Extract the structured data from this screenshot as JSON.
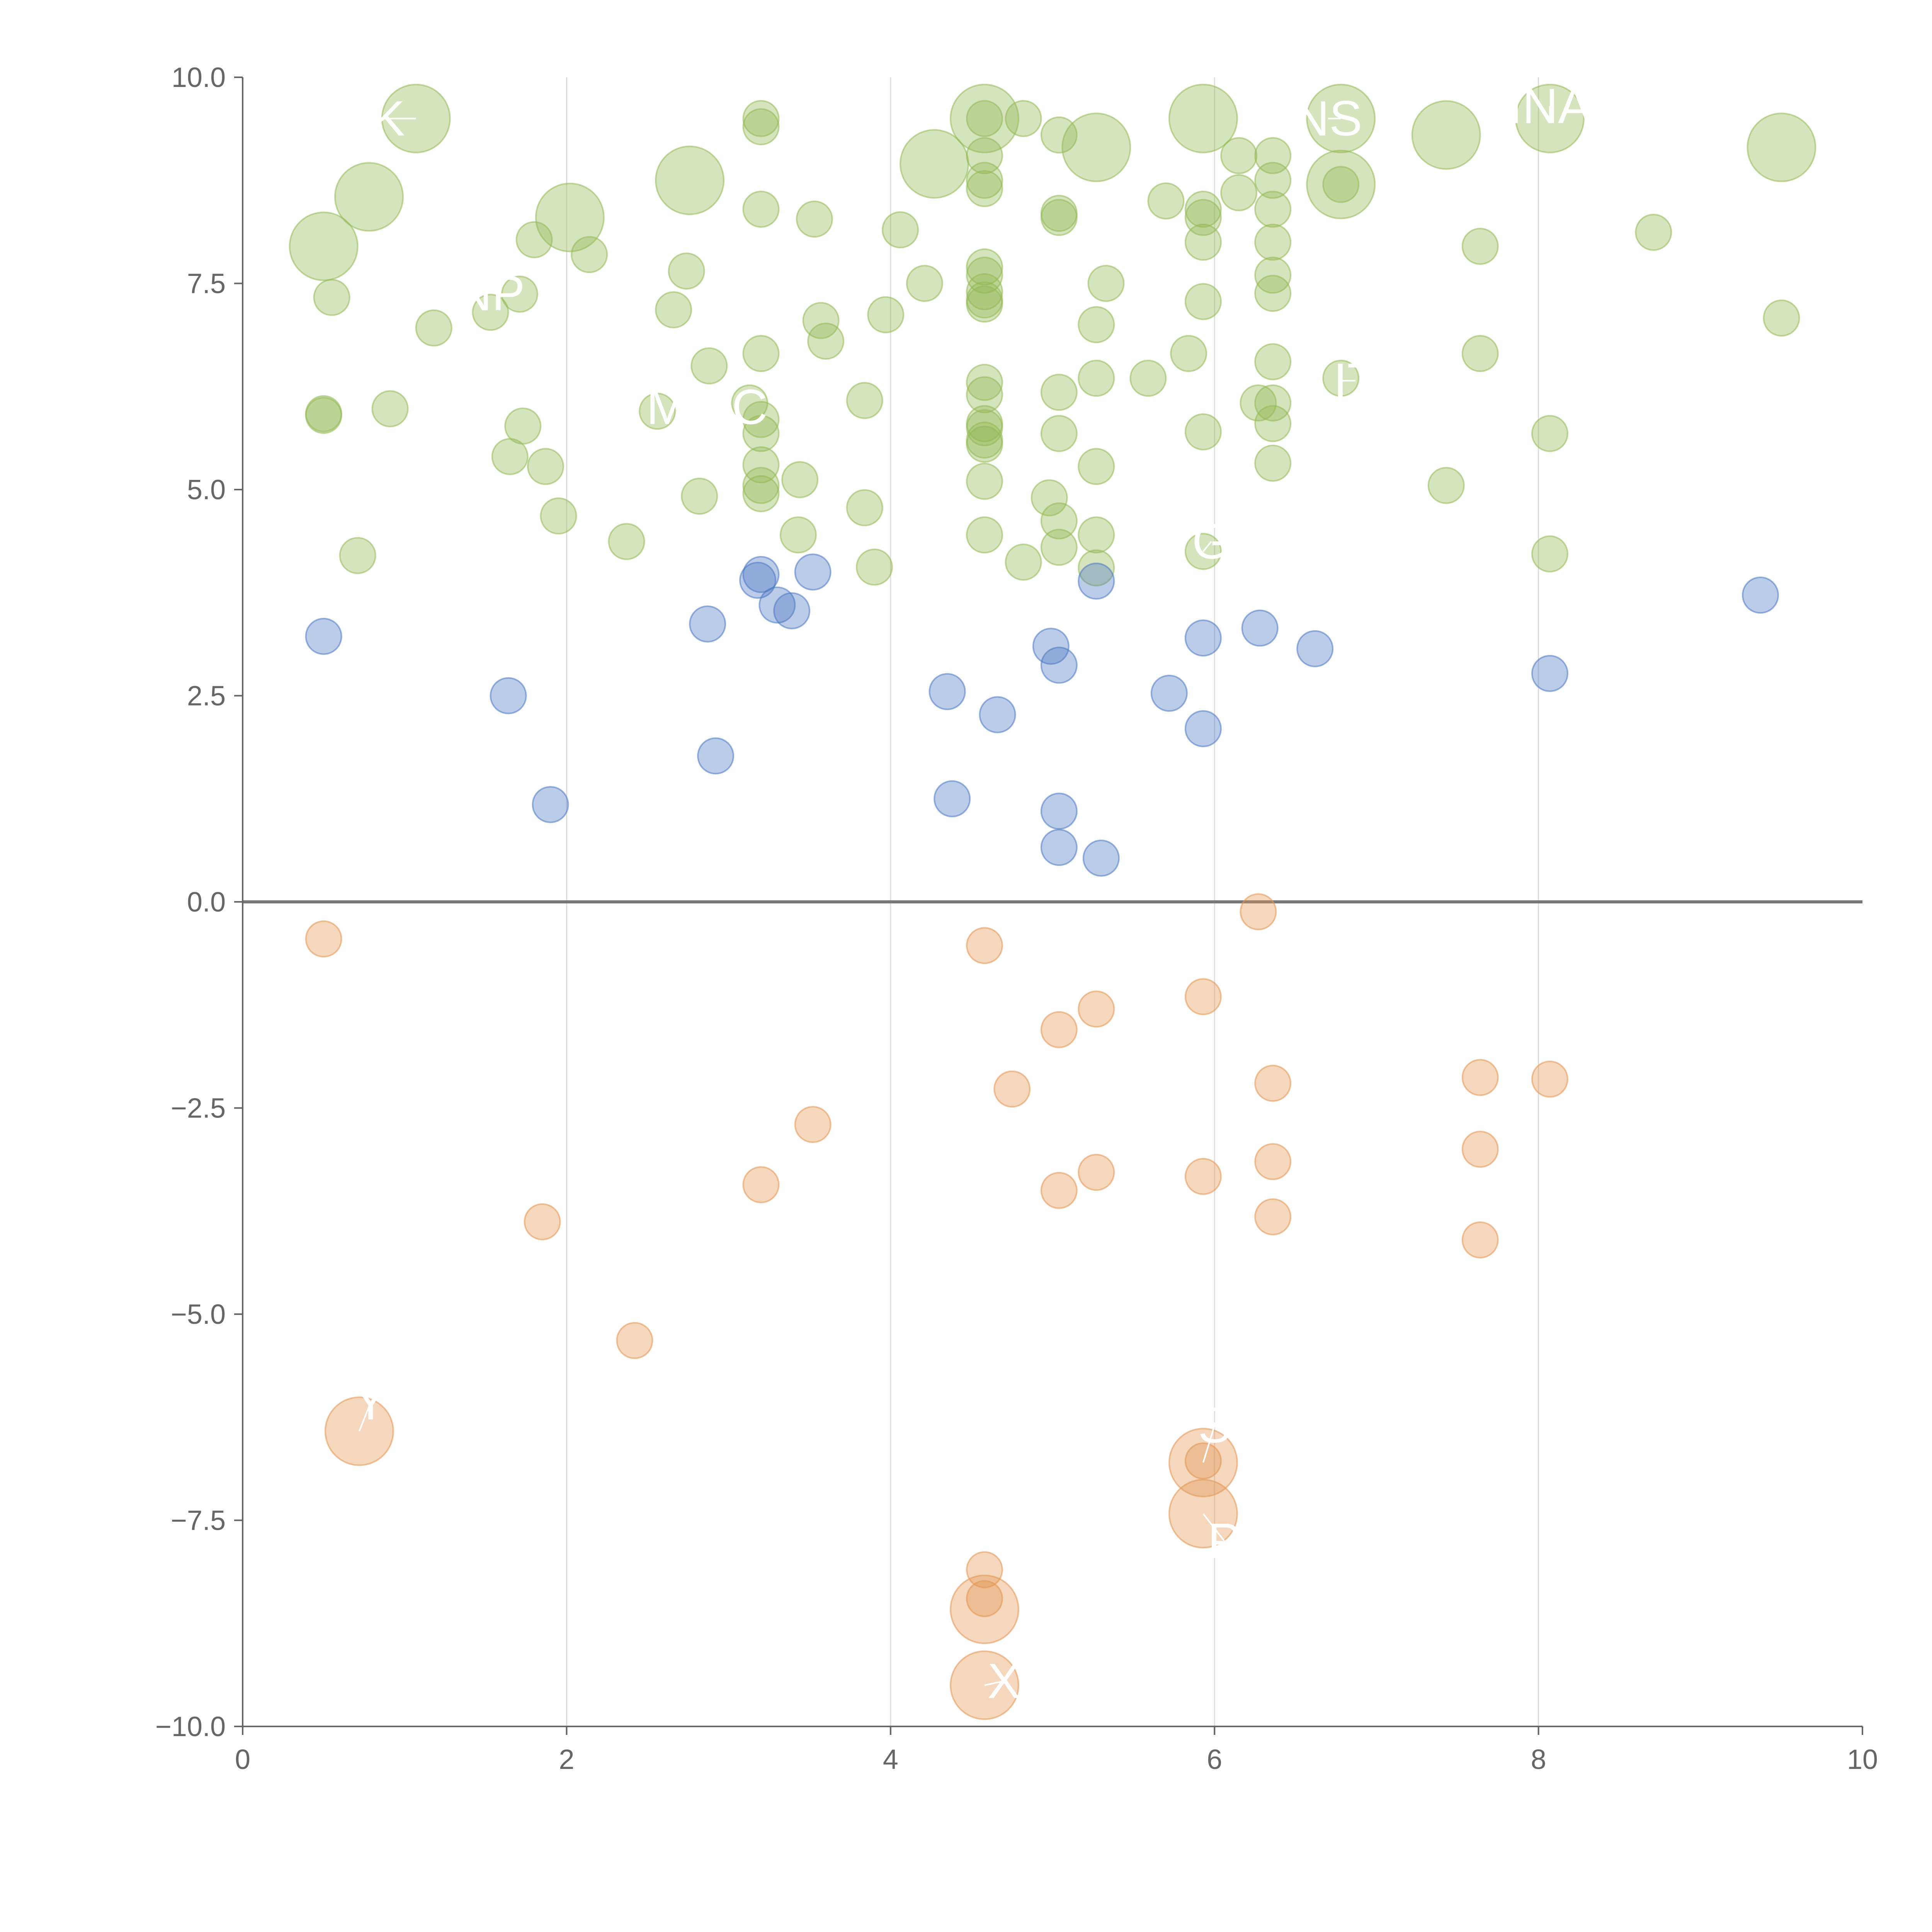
{
  "chart_data": {
    "type": "scatter",
    "title": "",
    "xlabel": "",
    "ylabel": "",
    "xlim": [
      0,
      10
    ],
    "ylim": [
      -10,
      10
    ],
    "x_ticks": [
      0,
      2,
      4,
      6,
      8,
      10
    ],
    "x_tick_labels": [
      "0",
      "2",
      "4",
      "6",
      "8",
      "10"
    ],
    "y_ticks": [
      10,
      7.5,
      5,
      2.5,
      0,
      -2.5,
      -5,
      -7.5,
      -10
    ],
    "y_tick_labels": [
      "10.0",
      "7.5",
      "5.0",
      "2.5",
      "0.0",
      "−2.5",
      "−5.0",
      "−7.5",
      "−10.0"
    ],
    "x_grid": [
      2,
      4,
      6,
      8
    ],
    "reference_line_y": 0,
    "colors": {
      "green": "#93b955",
      "blue": "#4b78c2",
      "orange": "#e39552"
    },
    "series": [
      {
        "name": "green",
        "color": "#93b955",
        "points": [
          [
            1.07,
            9.5,
            2.2
          ],
          [
            0.78,
            8.55,
            2.2
          ],
          [
            0.5,
            7.95,
            2.2
          ],
          [
            2.02,
            8.3,
            2.2
          ],
          [
            2.76,
            8.75,
            2.2
          ],
          [
            4.58,
            9.5,
            2.2
          ],
          [
            4.27,
            8.95,
            2.2
          ],
          [
            5.27,
            9.15,
            2.2
          ],
          [
            5.93,
            9.5,
            2.2
          ],
          [
            6.78,
            9.5,
            2.2
          ],
          [
            6.78,
            8.7,
            2.2
          ],
          [
            7.43,
            9.3,
            2.2
          ],
          [
            8.07,
            9.5,
            2.2
          ],
          [
            9.5,
            9.15,
            2.2
          ],
          [
            3.2,
            9.5,
            1
          ],
          [
            3.2,
            9.4,
            1
          ],
          [
            4.58,
            9.5,
            1
          ],
          [
            4.58,
            9.05,
            1
          ],
          [
            4.58,
            8.75,
            1
          ],
          [
            4.58,
            8.65,
            1
          ],
          [
            4.82,
            9.5,
            1
          ],
          [
            5.04,
            9.3,
            1
          ],
          [
            6.15,
            9.05,
            1
          ],
          [
            6.36,
            9.05,
            1
          ],
          [
            6.36,
            8.75,
            1
          ],
          [
            6.15,
            8.6,
            1
          ],
          [
            5.93,
            8.4,
            1
          ],
          [
            5.93,
            8.3,
            1
          ],
          [
            5.93,
            8.0,
            1
          ],
          [
            5.7,
            8.5,
            1
          ],
          [
            6.36,
            8.4,
            1
          ],
          [
            6.36,
            8.0,
            1
          ],
          [
            6.78,
            8.7,
            1
          ],
          [
            5.04,
            8.35,
            1
          ],
          [
            5.04,
            8.3,
            1
          ],
          [
            3.2,
            8.4,
            1
          ],
          [
            3.53,
            8.28,
            1
          ],
          [
            4.06,
            8.15,
            1
          ],
          [
            1.8,
            8.03,
            1
          ],
          [
            2.14,
            7.85,
            1
          ],
          [
            7.64,
            7.95,
            1
          ],
          [
            8.71,
            8.12,
            1
          ],
          [
            0.55,
            7.33,
            1
          ],
          [
            1.53,
            7.15,
            1
          ],
          [
            1.71,
            7.37,
            1
          ],
          [
            1.18,
            6.96,
            1
          ],
          [
            2.74,
            7.65,
            1
          ],
          [
            2.66,
            7.18,
            1
          ],
          [
            3.57,
            7.05,
            1
          ],
          [
            3.6,
            6.8,
            1
          ],
          [
            3.97,
            7.12,
            1
          ],
          [
            4.21,
            7.5,
            1
          ],
          [
            4.58,
            7.7,
            1
          ],
          [
            4.58,
            7.6,
            1
          ],
          [
            4.58,
            7.4,
            1
          ],
          [
            4.58,
            7.3,
            1
          ],
          [
            4.58,
            7.25,
            1
          ],
          [
            5.27,
            7.0,
            1
          ],
          [
            5.33,
            7.5,
            1
          ],
          [
            5.93,
            7.28,
            1
          ],
          [
            6.36,
            7.6,
            1
          ],
          [
            6.36,
            7.38,
            1
          ],
          [
            9.5,
            7.08,
            1
          ],
          [
            7.64,
            6.65,
            1
          ],
          [
            5.84,
            6.65,
            1
          ],
          [
            6.36,
            6.55,
            1
          ],
          [
            6.78,
            6.35,
            1
          ],
          [
            5.59,
            6.35,
            1
          ],
          [
            5.27,
            6.35,
            1
          ],
          [
            5.04,
            6.18,
            1
          ],
          [
            4.58,
            6.3,
            1
          ],
          [
            4.58,
            6.15,
            1
          ],
          [
            4.58,
            5.8,
            1
          ],
          [
            4.58,
            5.75,
            1
          ],
          [
            4.58,
            5.6,
            1
          ],
          [
            4.58,
            5.55,
            1
          ],
          [
            5.04,
            5.68,
            1
          ],
          [
            5.93,
            5.7,
            1
          ],
          [
            6.27,
            6.05,
            1
          ],
          [
            6.36,
            6.05,
            1
          ],
          [
            6.36,
            5.8,
            1
          ],
          [
            8.07,
            5.68,
            1
          ],
          [
            3.2,
            6.65,
            1
          ],
          [
            2.88,
            6.5,
            1
          ],
          [
            3.13,
            6.05,
            1
          ],
          [
            3.2,
            5.85,
            1
          ],
          [
            3.2,
            5.68,
            1
          ],
          [
            2.56,
            5.95,
            1
          ],
          [
            3.84,
            6.08,
            1
          ],
          [
            0.5,
            5.92,
            1
          ],
          [
            0.5,
            5.9,
            1
          ],
          [
            0.91,
            5.98,
            1
          ],
          [
            1.73,
            5.77,
            1
          ],
          [
            1.65,
            5.4,
            1
          ],
          [
            1.87,
            5.28,
            1
          ],
          [
            1.95,
            4.68,
            1
          ],
          [
            2.82,
            4.92,
            1
          ],
          [
            3.2,
            5.3,
            1
          ],
          [
            3.2,
            5.05,
            1
          ],
          [
            3.2,
            4.95,
            1
          ],
          [
            3.44,
            5.12,
            1
          ],
          [
            3.84,
            4.78,
            1
          ],
          [
            3.43,
            4.45,
            1
          ],
          [
            2.37,
            4.37,
            1
          ],
          [
            0.71,
            4.2,
            1
          ],
          [
            3.9,
            4.06,
            1
          ],
          [
            4.58,
            5.1,
            1
          ],
          [
            4.58,
            4.45,
            1
          ],
          [
            4.82,
            4.12,
            1
          ],
          [
            4.98,
            4.9,
            1
          ],
          [
            5.04,
            4.62,
            1
          ],
          [
            5.04,
            4.3,
            1
          ],
          [
            5.27,
            4.45,
            1
          ],
          [
            5.27,
            4.05,
            1
          ],
          [
            5.27,
            5.28,
            1
          ],
          [
            5.93,
            4.25,
            1
          ],
          [
            6.36,
            5.32,
            1
          ],
          [
            7.43,
            5.05,
            1
          ],
          [
            8.07,
            4.22,
            1
          ]
        ]
      },
      {
        "name": "blue",
        "color": "#4b78c2",
        "points": [
          [
            0.5,
            3.22,
            1
          ],
          [
            1.64,
            2.5,
            1
          ],
          [
            1.9,
            1.18,
            1
          ],
          [
            2.87,
            3.37,
            1
          ],
          [
            2.92,
            1.77,
            1
          ],
          [
            3.2,
            3.97,
            1
          ],
          [
            3.18,
            3.9,
            1
          ],
          [
            3.3,
            3.6,
            1
          ],
          [
            3.39,
            3.53,
            1
          ],
          [
            3.52,
            4.0,
            1
          ],
          [
            4.35,
            2.55,
            1
          ],
          [
            4.38,
            1.25,
            1
          ],
          [
            4.66,
            2.27,
            1
          ],
          [
            4.99,
            3.1,
            1
          ],
          [
            5.04,
            2.87,
            1
          ],
          [
            5.04,
            1.1,
            1
          ],
          [
            5.04,
            0.66,
            1
          ],
          [
            5.27,
            3.89,
            1
          ],
          [
            5.3,
            0.53,
            1
          ],
          [
            5.72,
            2.53,
            1
          ],
          [
            5.93,
            3.2,
            1
          ],
          [
            5.93,
            2.1,
            1
          ],
          [
            6.28,
            3.32,
            1
          ],
          [
            6.62,
            3.07,
            1
          ],
          [
            8.07,
            2.77,
            1
          ],
          [
            9.37,
            3.72,
            1
          ]
        ]
      },
      {
        "name": "orange",
        "color": "#e39552",
        "points": [
          [
            0.5,
            -0.45,
            1
          ],
          [
            0.72,
            -6.42,
            2.2
          ],
          [
            1.85,
            -3.88,
            1
          ],
          [
            2.42,
            -5.32,
            1
          ],
          [
            3.2,
            -3.43,
            1
          ],
          [
            3.52,
            -2.7,
            1
          ],
          [
            4.58,
            -0.53,
            1
          ],
          [
            4.75,
            -2.27,
            1
          ],
          [
            4.58,
            -8.1,
            1
          ],
          [
            4.58,
            -8.45,
            1
          ],
          [
            4.58,
            -8.58,
            2.2
          ],
          [
            4.58,
            -9.5,
            2.2
          ],
          [
            5.04,
            -1.55,
            1
          ],
          [
            5.04,
            -3.5,
            1
          ],
          [
            5.27,
            -1.3,
            1
          ],
          [
            5.27,
            -3.28,
            1
          ],
          [
            5.93,
            -1.15,
            1
          ],
          [
            5.93,
            -3.33,
            1
          ],
          [
            5.93,
            -6.78,
            1
          ],
          [
            5.93,
            -6.8,
            2.2
          ],
          [
            5.93,
            -7.42,
            2.2
          ],
          [
            6.27,
            -0.12,
            1
          ],
          [
            6.36,
            -2.2,
            1
          ],
          [
            6.36,
            -3.15,
            1
          ],
          [
            6.36,
            -3.82,
            1
          ],
          [
            7.64,
            -2.13,
            1
          ],
          [
            7.64,
            -3.0,
            1
          ],
          [
            7.64,
            -4.1,
            1
          ],
          [
            8.07,
            -2.15,
            1
          ]
        ]
      }
    ],
    "annotations": [
      {
        "text": "K",
        "x": 0.9,
        "y": 9.5,
        "ax": 1.07,
        "ay": 9.5
      },
      {
        "text": "NS",
        "x": 6.7,
        "y": 9.5,
        "ax": 6.78,
        "ay": 9.5
      },
      {
        "text": "INA",
        "x": 8.07,
        "y": 9.65,
        "ax": 8.07,
        "ay": 9.5
      },
      {
        "text": "NP",
        "x": 1.53,
        "y": 7.38,
        "ax": 1.53,
        "ay": 7.38
      },
      {
        "text": "M",
        "x": 2.62,
        "y": 6.0,
        "ax": 2.62,
        "ay": 6.0
      },
      {
        "text": "C",
        "x": 3.13,
        "y": 6.0,
        "ax": 3.13,
        "ay": 6.0
      },
      {
        "text": "IT",
        "x": 6.87,
        "y": 6.32,
        "ax": 6.78,
        "ay": 6.32
      },
      {
        "text": "G",
        "x": 5.98,
        "y": 4.37,
        "ax": 5.93,
        "ay": 4.25
      },
      {
        "text": "Y",
        "x": 0.79,
        "y": -6.07,
        "ax": 0.72,
        "ay": -6.42
      },
      {
        "text": "S",
        "x": 6.0,
        "y": -6.35,
        "ax": 5.93,
        "ay": -6.8
      },
      {
        "text": "P",
        "x": 6.06,
        "y": -7.75,
        "ax": 5.93,
        "ay": -7.42
      },
      {
        "text": "X",
        "x": 4.7,
        "y": -9.45,
        "ax": 4.58,
        "ay": -9.5
      }
    ]
  }
}
